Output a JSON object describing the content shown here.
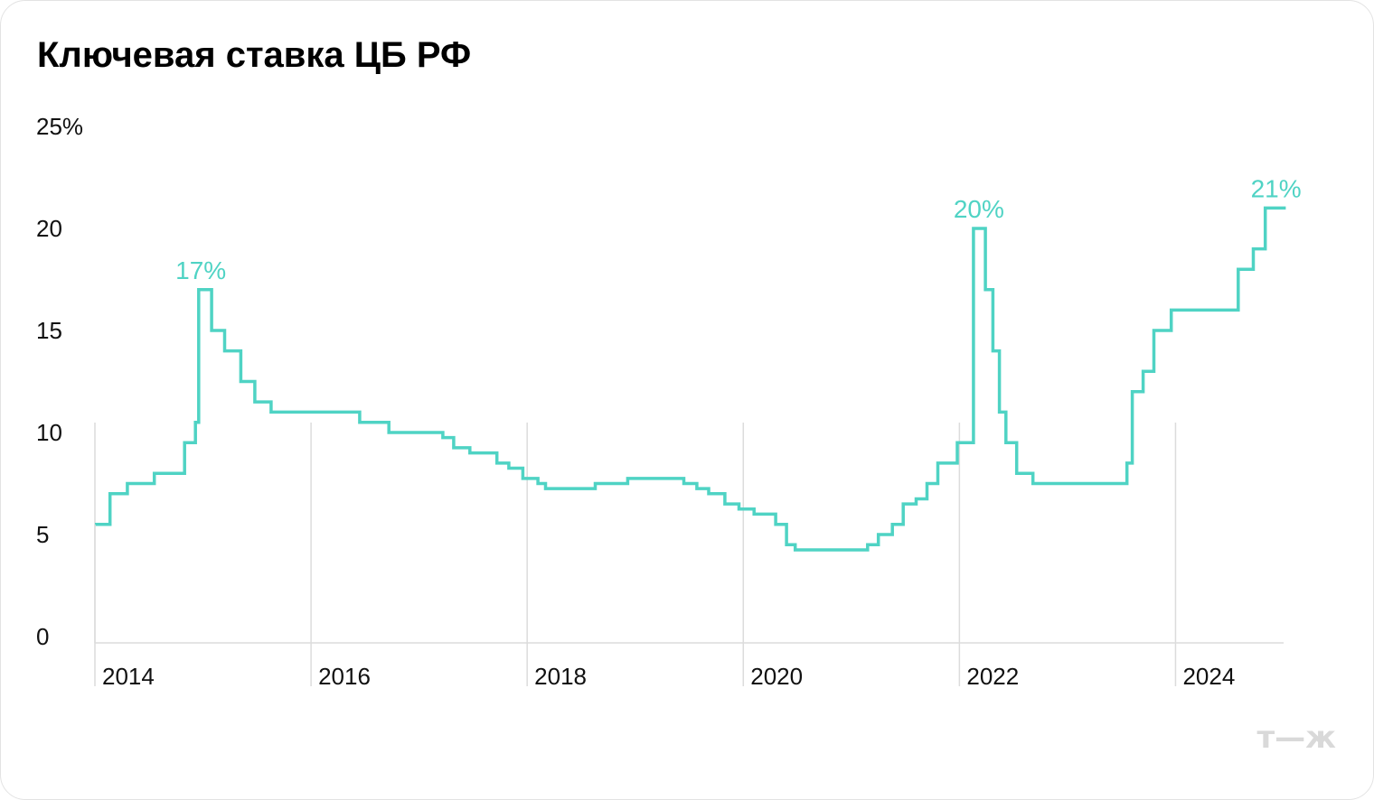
{
  "chart_data": {
    "type": "line",
    "step": true,
    "title": "Ключевая ставка ЦБ РФ",
    "xlabel": "",
    "ylabel": "",
    "ylim": [
      0,
      25
    ],
    "xlim": [
      2014.0,
      2025.0
    ],
    "y_ticks": [
      {
        "value": 0,
        "label": "0"
      },
      {
        "value": 5,
        "label": "5"
      },
      {
        "value": 10,
        "label": "10"
      },
      {
        "value": 15,
        "label": "15"
      },
      {
        "value": 20,
        "label": "20"
      },
      {
        "value": 25,
        "label": "25%"
      }
    ],
    "x_ticks": [
      {
        "value": 2014,
        "label": "2014"
      },
      {
        "value": 2016,
        "label": "2016"
      },
      {
        "value": 2018,
        "label": "2018"
      },
      {
        "value": 2020,
        "label": "2020"
      },
      {
        "value": 2022,
        "label": "2022"
      },
      {
        "value": 2024,
        "label": "2024"
      }
    ],
    "grid": {
      "vertical": true,
      "horizontal": false
    },
    "series": [
      {
        "color": "#4fd3c4",
        "points": [
          [
            2014.0,
            5.5
          ],
          [
            2014.14,
            7.0
          ],
          [
            2014.3,
            7.5
          ],
          [
            2014.55,
            8.0
          ],
          [
            2014.83,
            9.5
          ],
          [
            2014.93,
            10.5
          ],
          [
            2014.96,
            17.0
          ],
          [
            2015.08,
            15.0
          ],
          [
            2015.2,
            14.0
          ],
          [
            2015.35,
            12.5
          ],
          [
            2015.48,
            11.5
          ],
          [
            2015.63,
            11.0
          ],
          [
            2016.45,
            10.5
          ],
          [
            2016.72,
            10.0
          ],
          [
            2017.22,
            9.75
          ],
          [
            2017.32,
            9.25
          ],
          [
            2017.47,
            9.0
          ],
          [
            2017.72,
            8.5
          ],
          [
            2017.83,
            8.25
          ],
          [
            2017.96,
            7.75
          ],
          [
            2018.1,
            7.5
          ],
          [
            2018.17,
            7.25
          ],
          [
            2018.63,
            7.5
          ],
          [
            2018.93,
            7.75
          ],
          [
            2019.45,
            7.5
          ],
          [
            2019.57,
            7.25
          ],
          [
            2019.68,
            7.0
          ],
          [
            2019.83,
            6.5
          ],
          [
            2019.96,
            6.25
          ],
          [
            2020.1,
            6.0
          ],
          [
            2020.3,
            5.5
          ],
          [
            2020.4,
            4.5
          ],
          [
            2020.48,
            4.25
          ],
          [
            2021.15,
            4.5
          ],
          [
            2021.25,
            5.0
          ],
          [
            2021.38,
            5.5
          ],
          [
            2021.48,
            6.5
          ],
          [
            2021.6,
            6.75
          ],
          [
            2021.7,
            7.5
          ],
          [
            2021.8,
            8.5
          ],
          [
            2021.98,
            9.5
          ],
          [
            2022.13,
            20.0
          ],
          [
            2022.24,
            17.0
          ],
          [
            2022.31,
            14.0
          ],
          [
            2022.37,
            11.0
          ],
          [
            2022.43,
            9.5
          ],
          [
            2022.53,
            8.0
          ],
          [
            2022.68,
            7.5
          ],
          [
            2023.55,
            8.5
          ],
          [
            2023.6,
            12.0
          ],
          [
            2023.7,
            13.0
          ],
          [
            2023.8,
            15.0
          ],
          [
            2023.96,
            16.0
          ],
          [
            2024.58,
            18.0
          ],
          [
            2024.72,
            19.0
          ],
          [
            2024.83,
            21.0
          ],
          [
            2025.02,
            21.0
          ]
        ]
      }
    ],
    "annotations": [
      {
        "x": 2014.98,
        "y": 17,
        "text": "17%"
      },
      {
        "x": 2022.18,
        "y": 20,
        "text": "20%"
      },
      {
        "x": 2024.93,
        "y": 21,
        "text": "21%"
      }
    ]
  },
  "logo": {
    "text": "т—ж",
    "color": "#d9d9d9"
  }
}
